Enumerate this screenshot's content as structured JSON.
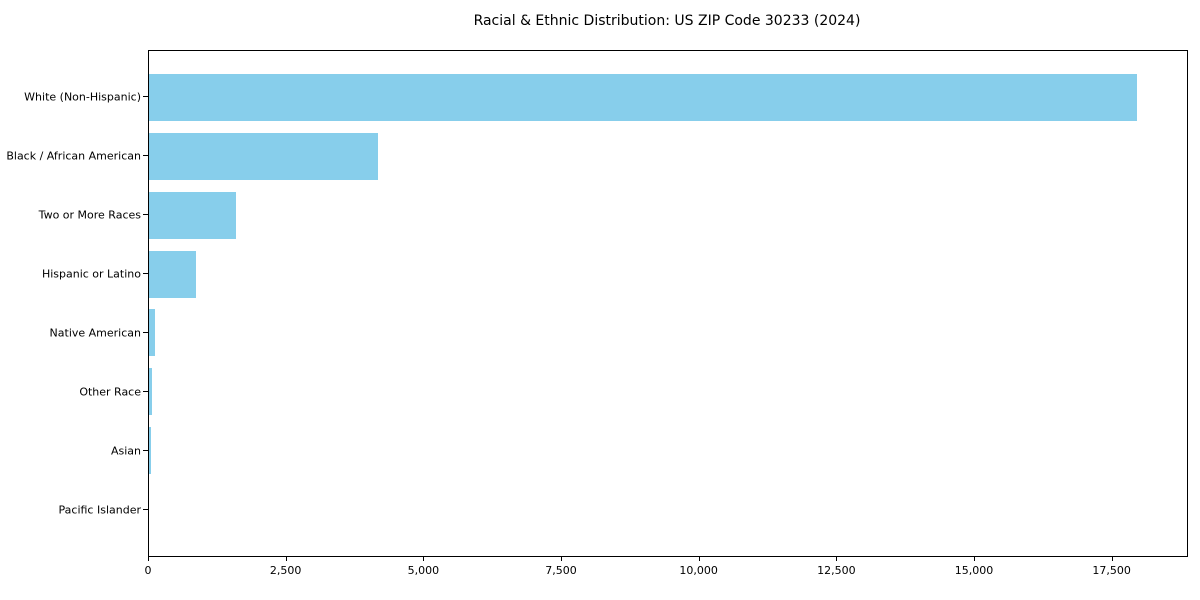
{
  "chart_data": {
    "type": "bar",
    "orientation": "horizontal",
    "title": "Racial & Ethnic Distribution: US ZIP Code 30233 (2024)",
    "categories": [
      "White (Non-Hispanic)",
      "Black / African American",
      "Two or More Races",
      "Hispanic or Latino",
      "Native American",
      "Other Race",
      "Asian",
      "Pacific Islander"
    ],
    "values": [
      17950,
      4160,
      1580,
      850,
      115,
      60,
      45,
      0
    ],
    "xlabel": "",
    "ylabel": "",
    "xlim": [
      0,
      18850
    ],
    "xticks": [
      0,
      2500,
      5000,
      7500,
      10000,
      12500,
      15000,
      17500
    ],
    "xtick_labels": [
      "0",
      "2,500",
      "5,000",
      "7,500",
      "10,000",
      "12,500",
      "15,000",
      "17,500"
    ],
    "bar_color": "#87CEEB",
    "grid": false,
    "legend": "none"
  }
}
